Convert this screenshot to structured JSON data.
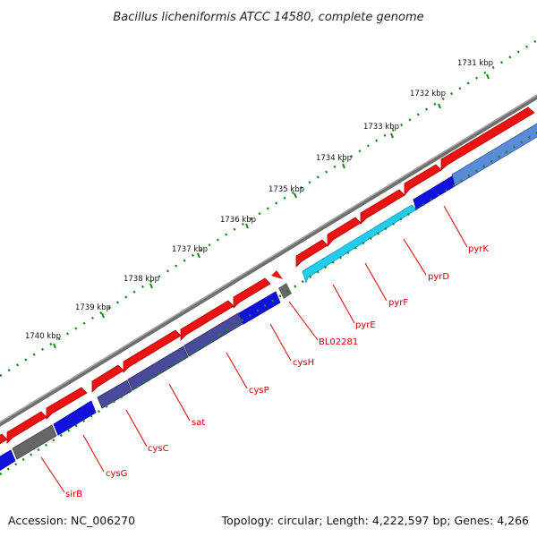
{
  "title": "Bacillus licheniformis ATCC 14580, complete genome",
  "footer": {
    "accession": "Accession: NC_006270",
    "summary": "Topology: circular; Length: 4,222,597 bp; Genes: 4,266"
  },
  "scale_labels": [
    "1731 kbp",
    "1732 kbp",
    "1733 kbp",
    "1734 kbp",
    "1735 kbp",
    "1736 kbp",
    "1737 kbp",
    "1738 kbp",
    "1739 kbp",
    "1740 kbp"
  ],
  "gene_labels": [
    "pyrK",
    "pyrD",
    "pyrF",
    "pyrE",
    "BL02281",
    "cysH",
    "cysP",
    "sat",
    "cysC",
    "cysG",
    "sirB"
  ],
  "colors": {
    "backbone": "#777777",
    "forward_genes": "#ee1111",
    "pyr_genes": "#22ccee",
    "cys_genes": "#4a4a9a",
    "blue_genes": "#1111dd",
    "grey_genes": "#666666",
    "label_lines": "#dd0000",
    "ticks": "#118811"
  }
}
